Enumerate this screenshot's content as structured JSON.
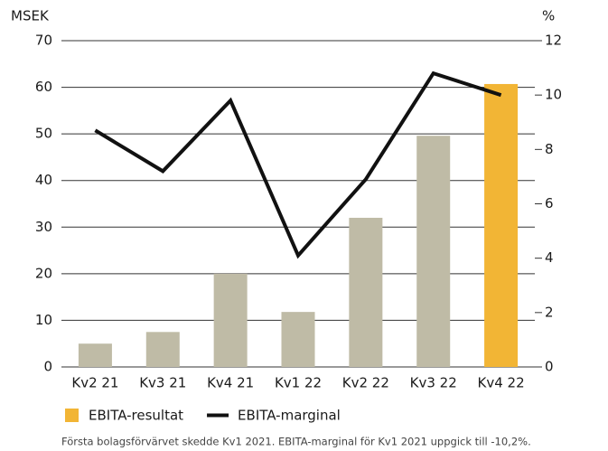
{
  "chart_data": {
    "type": "bar_line",
    "y_label": "MSEK",
    "y2_label": "%",
    "categories": [
      "Kv2 21",
      "Kv3 21",
      "Kv4 21",
      "Kv1 22",
      "Kv2 22",
      "Kv3 22",
      "Kv4 22"
    ],
    "series": [
      {
        "name": "EBITA-resultat",
        "type": "bar",
        "color": "#f2b535",
        "colors": [
          "#bfbba6",
          "#bfbba6",
          "#bfbba6",
          "#bfbba6",
          "#bfbba6",
          "#bfbba6",
          "#f2b535"
        ],
        "values": [
          5,
          7.5,
          20,
          11.8,
          32,
          49.6,
          60.7
        ]
      },
      {
        "name": "EBITA-marginal",
        "type": "line",
        "color": "#111111",
        "axis": "y2",
        "values": [
          8.7,
          7.2,
          9.8,
          4.1,
          6.9,
          10.8,
          10.0
        ]
      }
    ],
    "ylim": [
      0,
      70
    ],
    "yticks": [
      0,
      10,
      20,
      30,
      40,
      50,
      60,
      70
    ],
    "y2lim": [
      0,
      12
    ],
    "y2ticks": [
      0,
      2,
      4,
      6,
      8,
      10,
      12
    ],
    "grid": true,
    "legend": "bottom",
    "footnote": "Första bolagsförvärvet skedde Kv1 2021. EBITA-marginal för Kv1 2021 uppgick till -10,2%."
  }
}
